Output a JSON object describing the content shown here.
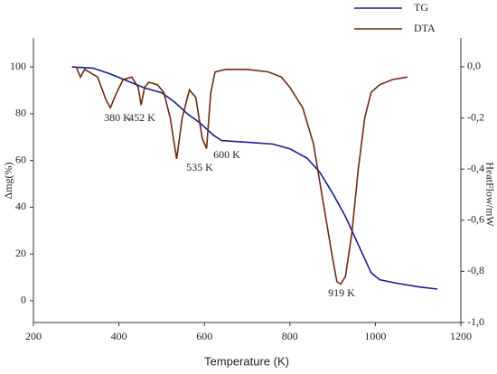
{
  "chart_data": {
    "type": "line",
    "xlabel": "Temperature (K)",
    "ylabel": "Δmg(%)",
    "y2label": "HeatFlow/mW",
    "xlim": [
      200,
      1200
    ],
    "xticks": [
      200,
      400,
      600,
      800,
      1000,
      1200
    ],
    "ylim": [
      -9.3,
      112.4
    ],
    "yticks": [
      0,
      20,
      40,
      60,
      80,
      100
    ],
    "y2lim": [
      -1.0,
      0.113
    ],
    "y2ticks": [
      {
        "value": 0,
        "label": "0,0"
      },
      {
        "value": -0.2,
        "label": "-0,2"
      },
      {
        "value": -0.4,
        "label": "-0,4"
      },
      {
        "value": -0.6,
        "label": "-0,6"
      },
      {
        "value": -0.8,
        "label": "-0,8"
      },
      {
        "value": -1.0,
        "label": "-1,0"
      }
    ],
    "legend": "top-right",
    "series": [
      {
        "name": "TG",
        "color": "#1c1c8c",
        "x": [
          290,
          340,
          380,
          420,
          460,
          500,
          530,
          560,
          590,
          620,
          640,
          700,
          760,
          800,
          840,
          870,
          900,
          930,
          960,
          990,
          1010,
          1050,
          1100,
          1145
        ],
        "values": [
          100,
          99.5,
          97,
          94,
          91,
          89,
          85,
          80,
          76,
          71,
          68.5,
          67.8,
          67,
          65,
          61,
          55,
          46,
          36,
          24,
          12,
          9,
          7.5,
          6,
          5
        ]
      },
      {
        "name": "DTA",
        "color": "#6b2a14",
        "axis": "y2",
        "x": [
          300,
          310,
          320,
          350,
          370,
          380,
          395,
          410,
          430,
          445,
          452,
          460,
          470,
          490,
          505,
          520,
          535,
          548,
          565,
          580,
          595,
          605,
          615,
          625,
          650,
          700,
          750,
          780,
          800,
          830,
          855,
          880,
          900,
          910,
          919,
          930,
          945,
          960,
          975,
          990,
          1010,
          1040,
          1075
        ],
        "values": [
          0.0,
          -0.04,
          -0.01,
          -0.04,
          -0.13,
          -0.16,
          -0.1,
          -0.05,
          -0.04,
          -0.08,
          -0.15,
          -0.08,
          -0.06,
          -0.07,
          -0.1,
          -0.2,
          -0.36,
          -0.2,
          -0.09,
          -0.12,
          -0.28,
          -0.32,
          -0.1,
          -0.02,
          -0.01,
          -0.01,
          -0.02,
          -0.04,
          -0.08,
          -0.16,
          -0.3,
          -0.55,
          -0.75,
          -0.84,
          -0.85,
          -0.82,
          -0.65,
          -0.4,
          -0.2,
          -0.1,
          -0.07,
          -0.05,
          -0.04
        ]
      }
    ],
    "annotations": [
      "380 K",
      "452 K",
      "535 K",
      "600 K",
      "919 K"
    ]
  }
}
